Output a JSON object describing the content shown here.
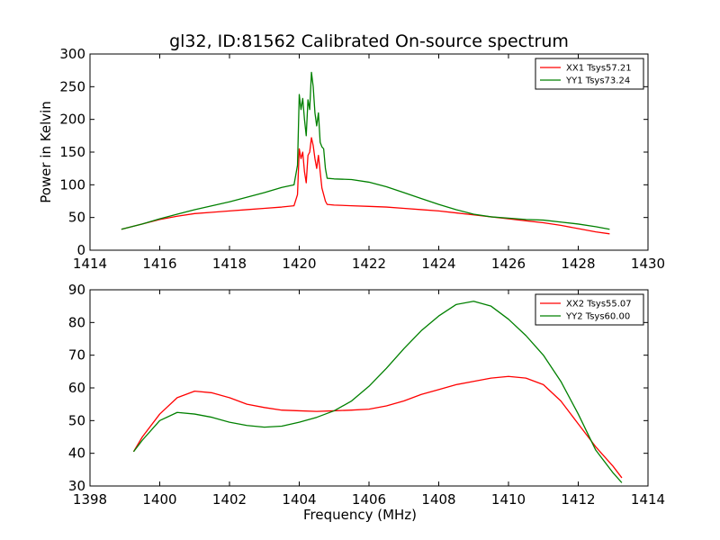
{
  "figure": {
    "title": "gl32, ID:81562 Calibrated On-source spectrum"
  },
  "chart_data": [
    {
      "type": "line",
      "xlabel": "",
      "ylabel": "Power in Kelvin",
      "xlim": [
        1414,
        1430
      ],
      "ylim": [
        0,
        300
      ],
      "xticks": [
        1414,
        1416,
        1418,
        1420,
        1422,
        1424,
        1426,
        1428,
        1430
      ],
      "yticks": [
        0,
        50,
        100,
        150,
        200,
        250,
        300
      ],
      "legend_position": "top-right",
      "series": [
        {
          "name": "XX1 Tsys57.21",
          "color": "#ff0000",
          "x": [
            1414.9,
            1415.5,
            1416.0,
            1416.5,
            1417.0,
            1417.5,
            1418.0,
            1418.5,
            1419.0,
            1419.5,
            1419.85,
            1419.95,
            1420.0,
            1420.05,
            1420.1,
            1420.15,
            1420.2,
            1420.25,
            1420.3,
            1420.35,
            1420.4,
            1420.45,
            1420.5,
            1420.55,
            1420.6,
            1420.65,
            1420.7,
            1420.75,
            1420.8,
            1421.0,
            1421.5,
            1422.0,
            1422.5,
            1423.0,
            1423.5,
            1424.0,
            1424.5,
            1425.0,
            1425.5,
            1426.0,
            1426.5,
            1427.0,
            1427.5,
            1428.0,
            1428.5,
            1428.9
          ],
          "y": [
            32,
            40,
            47,
            52,
            56,
            58,
            60,
            62,
            64,
            66,
            68,
            85,
            155,
            140,
            150,
            120,
            103,
            145,
            150,
            172,
            160,
            140,
            125,
            145,
            120,
            95,
            85,
            75,
            70,
            69,
            68,
            67,
            66,
            64,
            62,
            60,
            57,
            54,
            51,
            48,
            45,
            42,
            38,
            33,
            28,
            25
          ]
        },
        {
          "name": "YY1 Tsys73.24",
          "color": "#008000",
          "x": [
            1414.9,
            1415.5,
            1416.0,
            1416.5,
            1417.0,
            1417.5,
            1418.0,
            1418.5,
            1419.0,
            1419.5,
            1419.85,
            1419.95,
            1420.0,
            1420.05,
            1420.1,
            1420.15,
            1420.2,
            1420.25,
            1420.3,
            1420.35,
            1420.4,
            1420.45,
            1420.5,
            1420.55,
            1420.6,
            1420.65,
            1420.7,
            1420.75,
            1420.8,
            1421.0,
            1421.5,
            1422.0,
            1422.5,
            1423.0,
            1423.5,
            1424.0,
            1424.5,
            1425.0,
            1425.5,
            1426.0,
            1426.5,
            1427.0,
            1427.5,
            1428.0,
            1428.5,
            1428.9
          ],
          "y": [
            32,
            40,
            48,
            55,
            62,
            68,
            74,
            81,
            88,
            96,
            100,
            130,
            238,
            215,
            232,
            200,
            175,
            230,
            215,
            272,
            250,
            210,
            190,
            210,
            165,
            158,
            155,
            125,
            110,
            109,
            108,
            104,
            97,
            88,
            79,
            70,
            62,
            55,
            51,
            49,
            47,
            46,
            43,
            40,
            36,
            32
          ]
        }
      ]
    },
    {
      "type": "line",
      "xlabel": "Frequency (MHz)",
      "ylabel": "",
      "xlim": [
        1398,
        1414
      ],
      "ylim": [
        30,
        90
      ],
      "xticks": [
        1398,
        1400,
        1402,
        1404,
        1406,
        1408,
        1410,
        1412,
        1414
      ],
      "yticks": [
        30,
        40,
        50,
        60,
        70,
        80,
        90
      ],
      "legend_position": "top-right",
      "series": [
        {
          "name": "XX2 Tsys55.07",
          "color": "#ff0000",
          "x": [
            1399.25,
            1399.5,
            1400.0,
            1400.5,
            1401.0,
            1401.5,
            1402.0,
            1402.5,
            1403.0,
            1403.5,
            1404.0,
            1404.5,
            1405.0,
            1405.5,
            1406.0,
            1406.5,
            1407.0,
            1407.5,
            1408.0,
            1408.5,
            1409.0,
            1409.5,
            1410.0,
            1410.5,
            1411.0,
            1411.5,
            1412.0,
            1412.5,
            1413.0,
            1413.25
          ],
          "y": [
            40.5,
            45,
            52,
            57,
            59,
            58.5,
            57,
            55,
            54,
            53.2,
            53,
            52.8,
            53,
            53.2,
            53.5,
            54.5,
            56,
            58,
            59.5,
            61,
            62,
            63,
            63.5,
            63,
            61,
            56,
            49,
            42,
            36,
            32.5
          ]
        },
        {
          "name": "YY2 Tsys60.00",
          "color": "#008000",
          "x": [
            1399.25,
            1399.5,
            1400.0,
            1400.5,
            1401.0,
            1401.5,
            1402.0,
            1402.5,
            1403.0,
            1403.5,
            1404.0,
            1404.5,
            1405.0,
            1405.5,
            1406.0,
            1406.5,
            1407.0,
            1407.5,
            1408.0,
            1408.5,
            1409.0,
            1409.5,
            1410.0,
            1410.5,
            1411.0,
            1411.5,
            1412.0,
            1412.5,
            1413.0,
            1413.25
          ],
          "y": [
            40.5,
            44,
            50,
            52.5,
            52,
            51,
            49.5,
            48.5,
            48,
            48.3,
            49.5,
            51,
            53,
            56,
            60.5,
            66,
            72,
            77.5,
            82,
            85.5,
            86.5,
            85,
            81,
            76,
            70,
            62,
            52,
            41,
            34,
            31
          ]
        }
      ]
    }
  ]
}
